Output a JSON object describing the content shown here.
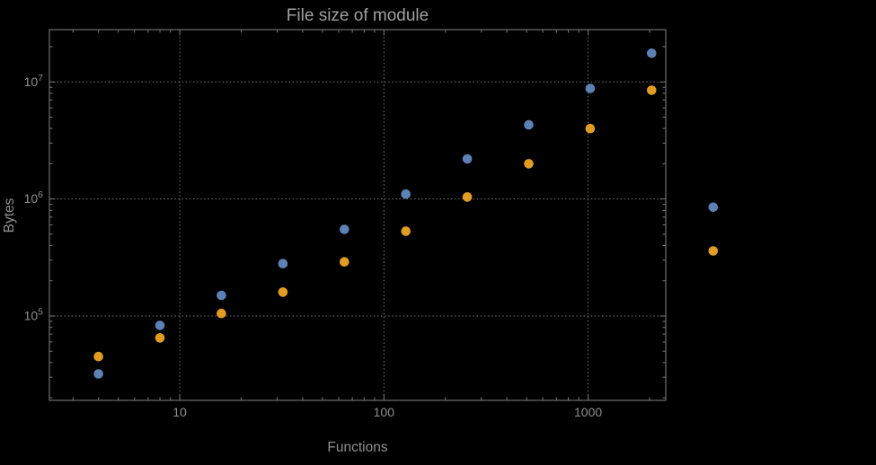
{
  "title": "File size of module",
  "axes": {
    "x_label": "Functions",
    "y_label": "Bytes"
  },
  "colors": {
    "background": "#000000",
    "frame": "#6f6f6f",
    "grid": "#777777",
    "text": "#8f8f8f",
    "title": "#a0a0a0",
    "series_blue": "#5e81b5",
    "series_orange": "#e19c24"
  },
  "chart_data": {
    "type": "scatter",
    "title": "File size of module",
    "xlabel": "Functions",
    "ylabel": "Bytes",
    "x_scale": "log",
    "y_scale": "log",
    "xlim": [
      2.3,
      2400
    ],
    "ylim": [
      19000,
      28000000
    ],
    "x_major_ticks": [
      10,
      100,
      1000
    ],
    "x_tick_labels": [
      "10",
      "100",
      "1000"
    ],
    "y_major_ticks": [
      100000,
      1000000,
      10000000
    ],
    "y_tick_labels": [
      "10^5",
      "10^6",
      "10^7"
    ],
    "grid": "dotted lines at major ticks, both axes",
    "legend": "none",
    "marker": "filled circle",
    "series": [
      {
        "name": "series-blue",
        "color": "#5e81b5",
        "x": [
          4,
          8,
          16,
          32,
          64,
          128,
          256,
          512,
          1024,
          2048,
          4096
        ],
        "y": [
          32000,
          83000,
          150000,
          280000,
          550000,
          1100000,
          2200000,
          4300000,
          8800000,
          17600000,
          850000
        ]
      },
      {
        "name": "series-orange",
        "color": "#e19c24",
        "x": [
          4,
          8,
          16,
          32,
          64,
          128,
          256,
          512,
          1024,
          2048,
          4096
        ],
        "y": [
          45000,
          65000,
          105000,
          160000,
          290000,
          530000,
          1040000,
          2000000,
          4000000,
          8500000,
          360000
        ]
      }
    ]
  }
}
